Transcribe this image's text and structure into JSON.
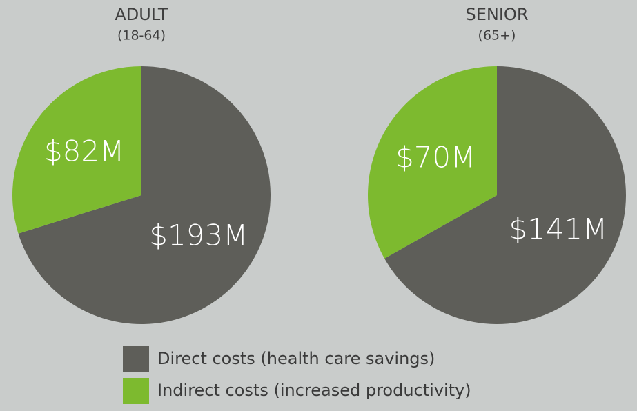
{
  "chart_data": [
    {
      "type": "pie",
      "title": "ADULT",
      "subtitle": "(18-64)",
      "values": [
        193,
        82
      ],
      "value_labels": [
        "$193M",
        "$82M"
      ]
    },
    {
      "type": "pie",
      "title": "SENIOR",
      "subtitle": "(65+)",
      "values": [
        141,
        70
      ],
      "value_labels": [
        "$141M",
        "$70M"
      ]
    }
  ],
  "legend": {
    "categories": [
      "Direct costs (health care savings)",
      "Indirect costs (increased productivity)"
    ],
    "colors": [
      "#5e5e59",
      "#7dba2f"
    ]
  }
}
